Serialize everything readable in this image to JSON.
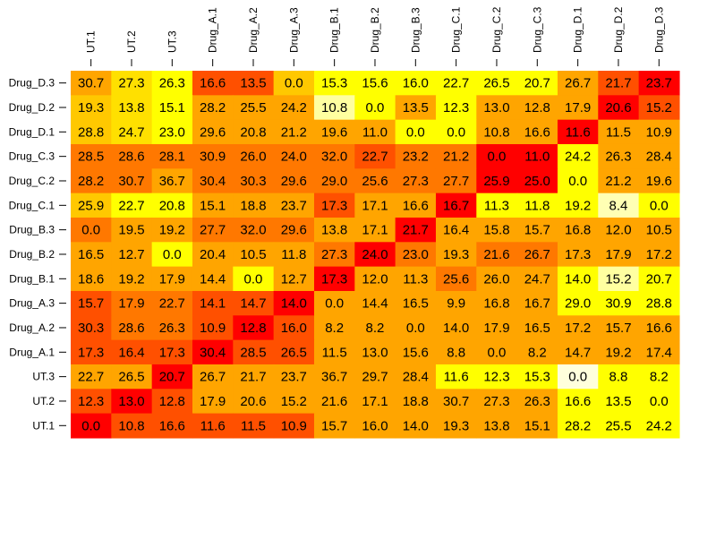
{
  "chart_data": {
    "type": "heatmap",
    "title": "",
    "xlabel": "",
    "ylabel": "",
    "x_labels": [
      "UT.1",
      "UT.2",
      "UT.3",
      "Drug_A.1",
      "Drug_A.2",
      "Drug_A.3",
      "Drug_B.1",
      "Drug_B.2",
      "Drug_B.3",
      "Drug_C.1",
      "Drug_C.2",
      "Drug_C.3",
      "Drug_D.1",
      "Drug_D.2",
      "Drug_D.3"
    ],
    "y_labels": [
      "Drug_D.3",
      "Drug_D.2",
      "Drug_D.1",
      "Drug_C.3",
      "Drug_C.2",
      "Drug_C.1",
      "Drug_B.3",
      "Drug_B.2",
      "Drug_B.1",
      "Drug_A.3",
      "Drug_A.2",
      "Drug_A.1",
      "UT.3",
      "UT.2",
      "UT.1"
    ],
    "values": [
      [
        "30.7",
        "27.3",
        "26.3",
        "16.6",
        "13.5",
        "0.0",
        "15.3",
        "15.6",
        "16.0",
        "22.7",
        "26.5",
        "20.7",
        "26.7",
        "21.7",
        "23.7"
      ],
      [
        "19.3",
        "13.8",
        "15.1",
        "28.2",
        "25.5",
        "24.2",
        "10.8",
        "0.0",
        "13.5",
        "12.3",
        "13.0",
        "12.8",
        "17.9",
        "20.6",
        "15.2"
      ],
      [
        "28.8",
        "24.7",
        "23.0",
        "29.6",
        "20.8",
        "21.2",
        "19.6",
        "11.0",
        "0.0",
        "0.0",
        "10.8",
        "16.6",
        "11.6",
        "11.5",
        "10.9"
      ],
      [
        "28.5",
        "28.6",
        "28.1",
        "30.9",
        "26.0",
        "24.0",
        "32.0",
        "22.7",
        "23.2",
        "21.2",
        "0.0",
        "11.0",
        "24.2",
        "26.3",
        "28.4"
      ],
      [
        "28.2",
        "30.7",
        "36.7",
        "30.4",
        "30.3",
        "29.6",
        "29.0",
        "25.6",
        "27.3",
        "27.7",
        "25.9",
        "25.0",
        "0.0",
        "21.2",
        "19.6"
      ],
      [
        "25.9",
        "22.7",
        "20.8",
        "15.1",
        "18.8",
        "23.7",
        "17.3",
        "17.1",
        "16.6",
        "16.7",
        "11.3",
        "11.8",
        "19.2",
        "8.4",
        "0.0"
      ],
      [
        "0.0",
        "19.5",
        "19.2",
        "27.7",
        "32.0",
        "29.6",
        "13.8",
        "17.1",
        "21.7",
        "16.4",
        "15.8",
        "15.7",
        "16.8",
        "12.0",
        "10.5"
      ],
      [
        "16.5",
        "12.7",
        "0.0",
        "20.4",
        "10.5",
        "11.8",
        "27.3",
        "24.0",
        "23.0",
        "19.3",
        "21.6",
        "26.7",
        "17.3",
        "17.9",
        "17.2"
      ],
      [
        "18.6",
        "19.2",
        "17.9",
        "14.4",
        "0.0",
        "12.7",
        "17.3",
        "12.0",
        "11.3",
        "25.6",
        "26.0",
        "24.7",
        "14.0",
        "15.2",
        "20.7"
      ],
      [
        "15.7",
        "17.9",
        "22.7",
        "14.1",
        "14.7",
        "14.0",
        "0.0",
        "14.4",
        "16.5",
        "9.9",
        "16.8",
        "16.7",
        "29.0",
        "30.9",
        "28.8"
      ],
      [
        "30.3",
        "28.6",
        "26.3",
        "10.9",
        "12.8",
        "16.0",
        "8.2",
        "8.2",
        "0.0",
        "14.0",
        "17.9",
        "16.5",
        "17.2",
        "15.7",
        "16.6"
      ],
      [
        "17.3",
        "16.4",
        "17.3",
        "30.4",
        "28.5",
        "26.5",
        "11.5",
        "13.0",
        "15.6",
        "8.8",
        "0.0",
        "8.2",
        "14.7",
        "19.2",
        "17.4"
      ],
      [
        "22.7",
        "26.5",
        "20.7",
        "26.7",
        "21.7",
        "23.7",
        "36.7",
        "29.7",
        "28.4",
        "11.6",
        "12.3",
        "15.3",
        "0.0",
        "8.8",
        "8.2"
      ],
      [
        "12.3",
        "13.0",
        "12.8",
        "17.9",
        "20.6",
        "15.2",
        "21.6",
        "17.1",
        "18.8",
        "30.7",
        "27.3",
        "26.3",
        "16.6",
        "13.5",
        "0.0"
      ],
      [
        "0.0",
        "10.8",
        "16.6",
        "11.6",
        "11.5",
        "10.9",
        "15.7",
        "16.0",
        "14.0",
        "19.3",
        "13.8",
        "15.1",
        "28.2",
        "25.5",
        "24.2"
      ]
    ],
    "cell_colors": [
      [
        "#ffa500",
        "#ffe000",
        "#ffff00",
        "#ff5000",
        "#ff5000",
        "#ffc800",
        "#ffff00",
        "#ffff00",
        "#ffff00",
        "#ffff00",
        "#ffff00",
        "#ffff00",
        "#ffa500",
        "#ff5000",
        "#ff0000"
      ],
      [
        "#ffc800",
        "#ffe000",
        "#ffff00",
        "#ffa500",
        "#ffa500",
        "#ffa500",
        "#ffffa0",
        "#ffff00",
        "#ffa500",
        "#ffff00",
        "#ffa500",
        "#ffa500",
        "#ffa500",
        "#ff0000",
        "#ff5000"
      ],
      [
        "#ffc800",
        "#ffe000",
        "#ffff00",
        "#ffa500",
        "#ffa500",
        "#ffa500",
        "#ffa500",
        "#ffa500",
        "#ffff00",
        "#ffff00",
        "#ffa500",
        "#ffa500",
        "#ff0000",
        "#ffa500",
        "#ffa500"
      ],
      [
        "#ff7800",
        "#ff7800",
        "#ff7800",
        "#ff7800",
        "#ff7800",
        "#ff7800",
        "#ff7800",
        "#ff5000",
        "#ff7800",
        "#ff7800",
        "#ff0000",
        "#ff0000",
        "#ffff00",
        "#ffa500",
        "#ffa500"
      ],
      [
        "#ff7800",
        "#ff7800",
        "#ffa500",
        "#ff7800",
        "#ff7800",
        "#ff7800",
        "#ff7800",
        "#ff7800",
        "#ff7800",
        "#ff7800",
        "#ff0000",
        "#ff0000",
        "#ffff00",
        "#ffa500",
        "#ffa500"
      ],
      [
        "#ffc800",
        "#ffff00",
        "#ffff00",
        "#ffa500",
        "#ffa500",
        "#ffa500",
        "#ff5000",
        "#ffa500",
        "#ffa500",
        "#ff0000",
        "#ffff00",
        "#ffff00",
        "#ffff00",
        "#ffffb4",
        "#ffff00"
      ],
      [
        "#ff7800",
        "#ffa500",
        "#ffa500",
        "#ff7800",
        "#ff7800",
        "#ff7800",
        "#ffa500",
        "#ffa500",
        "#ff0000",
        "#ffa500",
        "#ffa500",
        "#ffa500",
        "#ffa500",
        "#ffa500",
        "#ffa500"
      ],
      [
        "#ffa500",
        "#ffa500",
        "#ffff00",
        "#ffa500",
        "#ffa500",
        "#ffa500",
        "#ff7800",
        "#ff0000",
        "#ff7800",
        "#ffa500",
        "#ff7800",
        "#ff7800",
        "#ffa500",
        "#ffa500",
        "#ffa500"
      ],
      [
        "#ffa500",
        "#ffa500",
        "#ffa500",
        "#ffa500",
        "#ffff00",
        "#ffa500",
        "#ff0000",
        "#ffa500",
        "#ffa500",
        "#ff7800",
        "#ffa500",
        "#ffa500",
        "#ffff00",
        "#ffffa0",
        "#ffff00"
      ],
      [
        "#ff5000",
        "#ff7800",
        "#ff7800",
        "#ff5000",
        "#ff5000",
        "#ff0000",
        "#ffa500",
        "#ffa500",
        "#ffa500",
        "#ffa500",
        "#ffa500",
        "#ffa500",
        "#ffff00",
        "#ffff00",
        "#ffff00"
      ],
      [
        "#ff5000",
        "#ff7800",
        "#ff7800",
        "#ff5000",
        "#ff0000",
        "#ff5000",
        "#ffa500",
        "#ffa500",
        "#ffa500",
        "#ffa500",
        "#ffa500",
        "#ffa500",
        "#ffa500",
        "#ffa500",
        "#ffa500"
      ],
      [
        "#ff5000",
        "#ff5000",
        "#ff5000",
        "#ff0000",
        "#ff5000",
        "#ff5000",
        "#ffa500",
        "#ffa500",
        "#ffa500",
        "#ffa500",
        "#ffa500",
        "#ffa500",
        "#ffa500",
        "#ffa500",
        "#ffa500"
      ],
      [
        "#ffa500",
        "#ffa500",
        "#ff0000",
        "#ffa500",
        "#ffa500",
        "#ffa500",
        "#ffa500",
        "#ffa500",
        "#ffa500",
        "#ffff00",
        "#ffff00",
        "#ffff00",
        "#ffffdc",
        "#ffff00",
        "#ffff00"
      ],
      [
        "#ff5000",
        "#ff0000",
        "#ff5000",
        "#ffa500",
        "#ffa500",
        "#ffa500",
        "#ffa500",
        "#ffa500",
        "#ffa500",
        "#ffa500",
        "#ffa500",
        "#ffa500",
        "#ffff00",
        "#ffff00",
        "#ffff00"
      ],
      [
        "#ff0000",
        "#ff5000",
        "#ff5000",
        "#ff5000",
        "#ff5000",
        "#ff5000",
        "#ffa500",
        "#ffa500",
        "#ffa500",
        "#ffa500",
        "#ffa500",
        "#ffa500",
        "#ffff00",
        "#ffff00",
        "#ffff00"
      ]
    ],
    "grid": false,
    "legend": "none"
  }
}
